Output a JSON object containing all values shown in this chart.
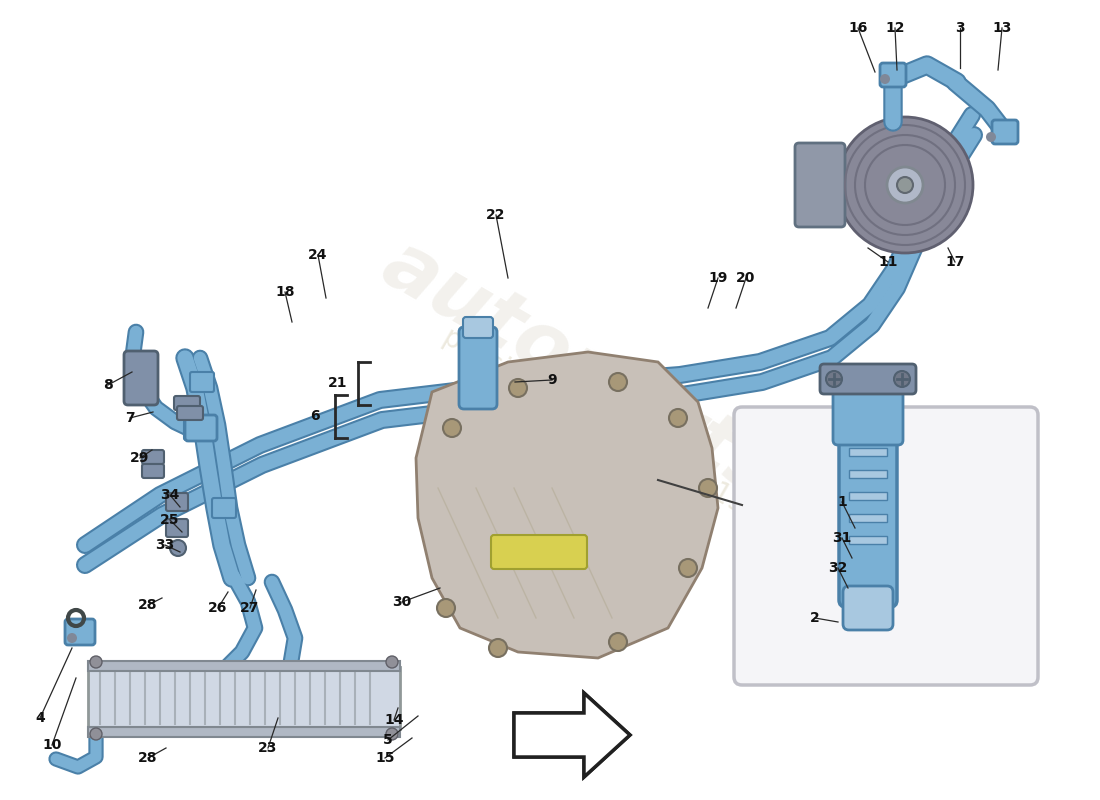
{
  "bg_color": "#ffffff",
  "tube_color": "#7ab0d4",
  "tube_outline": "#4a80a8",
  "tube_light": "#a8c8e0",
  "tube_mid": "#8fb8d8",
  "metal_color": "#9098a8",
  "metal_light": "#b8c0cc",
  "gearbox_color": "#c8c0b8",
  "gearbox_edge": "#908070",
  "condenser_color": "#d0d8e0",
  "bolt_color": "#808898",
  "inset_bg": "#f5f5f8",
  "inset_border": "#c0c0c8",
  "yellow_label": "#d8d050",
  "arrow_fill": "#d8d8d8",
  "label_color": "#111111",
  "line_color": "#282828",
  "clip_color": "#8090a8",
  "clip_edge": "#506070"
}
